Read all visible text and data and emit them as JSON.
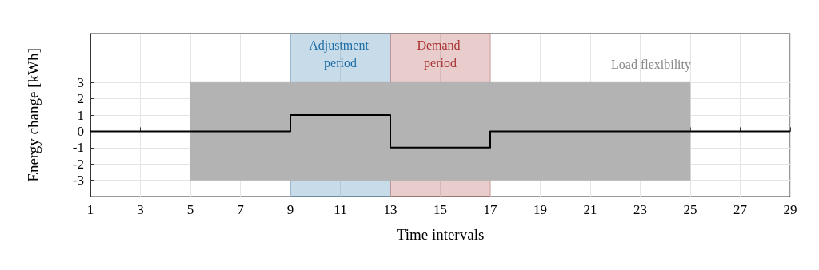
{
  "chart_data": {
    "type": "step",
    "xlabel": "Time intervals",
    "ylabel": "Energy change [kWh]",
    "xlim": [
      1,
      29
    ],
    "xticks": [
      1,
      3,
      5,
      7,
      9,
      11,
      13,
      15,
      17,
      19,
      21,
      23,
      25,
      27,
      29
    ],
    "ylim": [
      -4,
      6
    ],
    "yticks": [
      -3,
      -2,
      -1,
      0,
      1,
      2,
      3
    ],
    "grid": true,
    "series": [
      {
        "color": "#000000",
        "x": [
          1,
          5,
          9,
          13,
          17,
          25,
          29
        ],
        "values": [
          0,
          0,
          1,
          -1,
          0,
          0,
          0
        ],
        "lower": [
          null,
          -3,
          -3,
          -3,
          -3,
          -3,
          null
        ],
        "upper": [
          null,
          3,
          3,
          3,
          3,
          3,
          null
        ]
      }
    ],
    "bands": [
      {
        "axis": "x",
        "from": 9,
        "to": 13,
        "label": "Adjustment period",
        "color": "#1f6fa6"
      },
      {
        "axis": "x",
        "from": 13,
        "to": 17,
        "label": "Demand period",
        "color": "#a83232"
      }
    ],
    "annotations": [
      "Load flexibility"
    ]
  }
}
